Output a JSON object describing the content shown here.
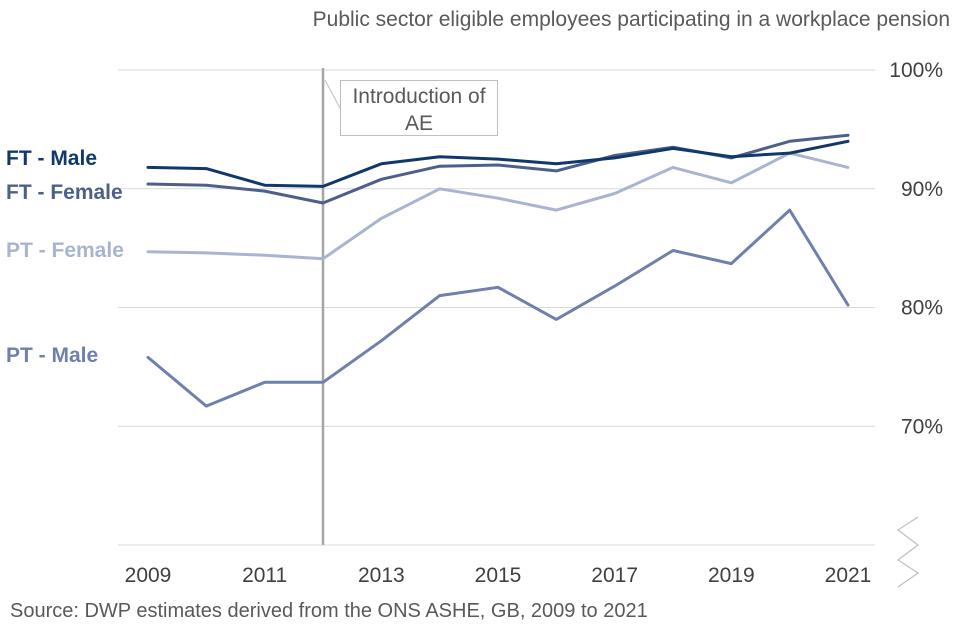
{
  "chart_data": {
    "type": "line",
    "title": "Public sector eligible employees participating in a workplace pension",
    "source": "Source: DWP estimates derived from the ONS ASHE, GB, 2009 to 2021",
    "x": [
      2009,
      2010,
      2011,
      2012,
      2013,
      2014,
      2015,
      2016,
      2017,
      2018,
      2019,
      2020,
      2021
    ],
    "x_tick_labels": [
      "2009",
      "2011",
      "2013",
      "2015",
      "2017",
      "2019",
      "2021"
    ],
    "y_tick_labels": [
      "100%",
      "90%",
      "80%",
      "70%"
    ],
    "ylim": [
      60,
      100
    ],
    "xlabel": "",
    "ylabel": "",
    "grid": true,
    "axis_break": true,
    "annotation": {
      "x": 2012,
      "line1": "Introduction of",
      "line2": "AE"
    },
    "series": [
      {
        "name": "FT - Male",
        "color": "#10386b",
        "values": [
          91.8,
          91.7,
          90.3,
          90.2,
          92.1,
          92.7,
          92.5,
          92.1,
          92.6,
          93.4,
          92.7,
          93.0,
          94.0
        ]
      },
      {
        "name": "FT - Female",
        "color": "#4d5f8a",
        "values": [
          90.4,
          90.3,
          89.8,
          88.8,
          90.8,
          91.9,
          92.0,
          91.5,
          92.8,
          93.5,
          92.6,
          94.0,
          94.5
        ]
      },
      {
        "name": "PT - Female",
        "color": "#a9b5d0",
        "values": [
          84.7,
          84.6,
          84.4,
          84.1,
          87.5,
          90.0,
          89.2,
          88.2,
          89.6,
          91.8,
          90.5,
          93.0,
          91.8
        ]
      },
      {
        "name": "PT - Male",
        "color": "#6f80ad",
        "values": [
          75.8,
          71.7,
          73.7,
          73.7,
          77.2,
          81.0,
          81.7,
          79.0,
          81.8,
          84.8,
          83.7,
          88.2,
          80.2
        ]
      }
    ]
  }
}
